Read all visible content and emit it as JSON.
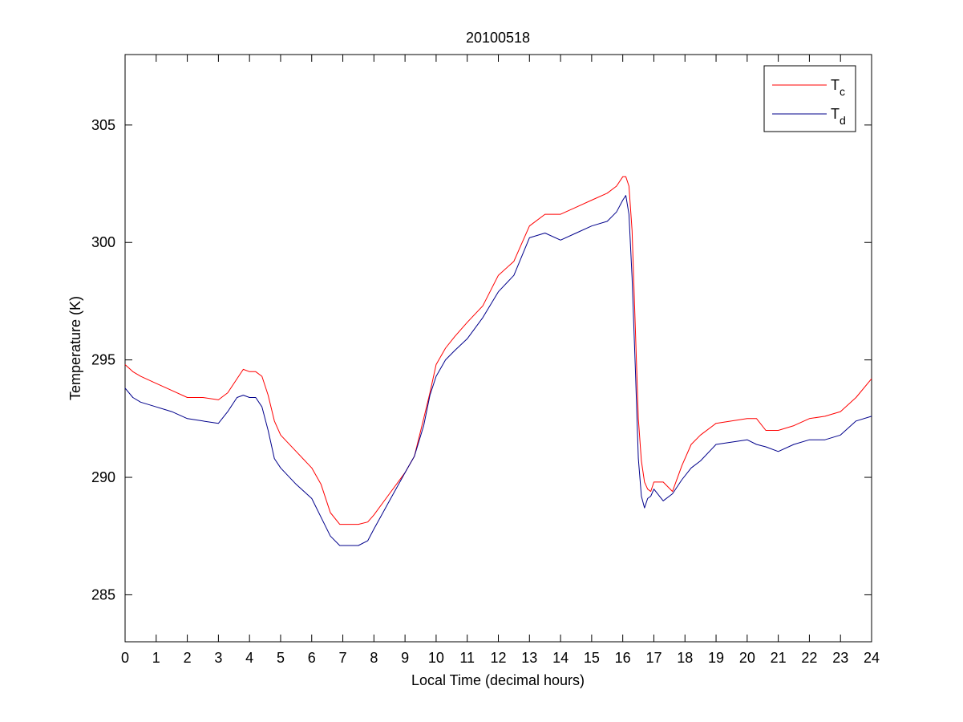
{
  "chart_data": {
    "type": "line",
    "title": "20100518",
    "xlabel": "Local Time (decimal hours)",
    "ylabel": "Temperature (K)",
    "xlim": [
      0,
      24
    ],
    "ylim": [
      283,
      308
    ],
    "xticks": [
      0,
      1,
      2,
      3,
      4,
      5,
      6,
      7,
      8,
      9,
      10,
      11,
      12,
      13,
      14,
      15,
      16,
      17,
      18,
      19,
      20,
      21,
      22,
      23,
      24
    ],
    "yticks": [
      285,
      290,
      295,
      300,
      305
    ],
    "grid": false,
    "legend_position": "top-right",
    "series": [
      {
        "name": "T",
        "name_subscript": "c",
        "color": "#ff0000",
        "x": [
          0,
          0.25,
          0.5,
          1,
          1.5,
          2,
          2.5,
          3,
          3.3,
          3.6,
          3.8,
          4,
          4.2,
          4.4,
          4.6,
          4.8,
          5,
          5.5,
          6,
          6.3,
          6.6,
          6.9,
          7.2,
          7.5,
          7.8,
          8,
          8.5,
          9,
          9.3,
          9.6,
          9.8,
          10,
          10.3,
          10.6,
          11,
          11.5,
          12,
          12.5,
          13,
          13.5,
          14,
          14.5,
          15,
          15.5,
          15.8,
          16,
          16.1,
          16.2,
          16.3,
          16.4,
          16.5,
          16.6,
          16.7,
          16.8,
          16.9,
          17,
          17.3,
          17.6,
          17.9,
          18.2,
          18.5,
          19,
          19.5,
          20,
          20.3,
          20.6,
          21,
          21.5,
          22,
          22.5,
          23,
          23.5,
          24
        ],
        "y": [
          294.8,
          294.5,
          294.3,
          294,
          293.7,
          293.4,
          293.4,
          293.3,
          293.6,
          294.2,
          294.6,
          294.5,
          294.5,
          294.3,
          293.5,
          292.4,
          291.8,
          291.1,
          290.4,
          289.7,
          288.5,
          288,
          288,
          288,
          288.1,
          288.4,
          289.3,
          290.2,
          290.9,
          292.5,
          293.6,
          294.8,
          295.5,
          296,
          296.6,
          297.3,
          298.6,
          299.2,
          300.7,
          301.2,
          301.2,
          301.5,
          301.8,
          302.1,
          302.4,
          302.8,
          302.8,
          302.4,
          300.5,
          296.5,
          292.5,
          290.7,
          289.8,
          289.5,
          289.4,
          289.8,
          289.8,
          289.4,
          290.5,
          291.4,
          291.8,
          292.3,
          292.4,
          292.5,
          292.5,
          292,
          292,
          292.2,
          292.5,
          292.6,
          292.8,
          293.4,
          294.2
        ]
      },
      {
        "name": "T",
        "name_subscript": "d",
        "color": "#00008b",
        "x": [
          0,
          0.25,
          0.5,
          1,
          1.5,
          2,
          2.5,
          3,
          3.3,
          3.6,
          3.8,
          4,
          4.2,
          4.4,
          4.6,
          4.8,
          5,
          5.5,
          6,
          6.3,
          6.6,
          6.9,
          7.2,
          7.5,
          7.8,
          8,
          8.5,
          9,
          9.3,
          9.6,
          9.8,
          10,
          10.3,
          10.6,
          11,
          11.5,
          12,
          12.5,
          13,
          13.5,
          14,
          14.5,
          15,
          15.5,
          15.8,
          16,
          16.1,
          16.2,
          16.3,
          16.4,
          16.5,
          16.6,
          16.7,
          16.8,
          16.9,
          17,
          17.3,
          17.6,
          17.9,
          18.2,
          18.5,
          19,
          19.5,
          20,
          20.3,
          20.6,
          21,
          21.5,
          22,
          22.5,
          23,
          23.5,
          24
        ],
        "y": [
          293.8,
          293.4,
          293.2,
          293,
          292.8,
          292.5,
          292.4,
          292.3,
          292.8,
          293.4,
          293.5,
          293.4,
          293.4,
          293,
          292,
          290.8,
          290.4,
          289.7,
          289.1,
          288.3,
          287.5,
          287.1,
          287.1,
          287.1,
          287.3,
          287.8,
          289,
          290.2,
          290.9,
          292.2,
          293.5,
          294.3,
          295,
          295.4,
          295.9,
          296.8,
          297.9,
          298.6,
          300.2,
          300.4,
          300.1,
          300.4,
          300.7,
          300.9,
          301.3,
          301.8,
          302,
          301.2,
          298.5,
          294.8,
          290.8,
          289.2,
          288.7,
          289.1,
          289.2,
          289.5,
          289,
          289.3,
          289.9,
          290.4,
          290.7,
          291.4,
          291.5,
          291.6,
          291.4,
          291.3,
          291.1,
          291.4,
          291.6,
          291.6,
          291.8,
          292.4,
          292.6
        ]
      }
    ]
  }
}
